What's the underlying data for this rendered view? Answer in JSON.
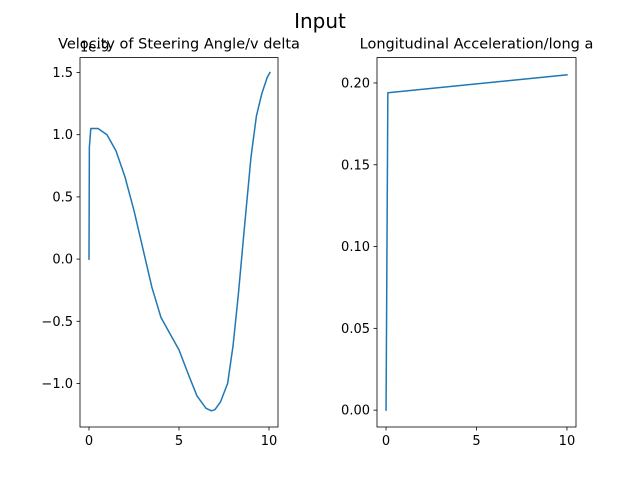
{
  "figure": {
    "suptitle": "Input"
  },
  "chart_data": [
    {
      "type": "line",
      "title": "Velocity of Steering Angle/v delta",
      "xlabel": "",
      "ylabel": "",
      "offset_label": "1e-9",
      "xlim": [
        -0.5,
        10.5
      ],
      "ylim": [
        -1.35,
        1.62
      ],
      "xticks": [
        0,
        5,
        10
      ],
      "xtick_labels": [
        "0",
        "5",
        "10"
      ],
      "yticks": [
        -1.0,
        -0.5,
        0.0,
        0.5,
        1.0,
        1.5
      ],
      "ytick_labels": [
        "−1.0",
        "−0.5",
        "0.0",
        "0.5",
        "1.0",
        "1.5"
      ],
      "grid": false,
      "color": "#1f77b4",
      "series": [
        {
          "x": [
            0,
            0.02,
            0.1,
            0.5,
            1.0,
            1.5,
            2.0,
            2.5,
            3.0,
            3.5,
            4.0,
            4.5,
            5.0,
            5.5,
            6.0,
            6.5,
            6.8,
            7.0,
            7.3,
            7.7,
            8.0,
            8.3,
            8.6,
            9.0,
            9.3,
            9.6,
            9.9,
            10.05
          ],
          "y": [
            0.0,
            0.9,
            1.05,
            1.05,
            1.0,
            0.87,
            0.66,
            0.39,
            0.08,
            -0.23,
            -0.47,
            -0.6,
            -0.73,
            -0.92,
            -1.1,
            -1.2,
            -1.22,
            -1.21,
            -1.15,
            -1.0,
            -0.7,
            -0.28,
            0.2,
            0.82,
            1.15,
            1.33,
            1.46,
            1.5
          ]
        }
      ]
    },
    {
      "type": "line",
      "title": "Longitudinal Acceleration/long a",
      "xlabel": "",
      "ylabel": "",
      "xlim": [
        -0.5,
        10.5
      ],
      "ylim": [
        -0.0103,
        0.2155
      ],
      "xticks": [
        0,
        5,
        10
      ],
      "xtick_labels": [
        "0",
        "5",
        "10"
      ],
      "yticks": [
        0.0,
        0.05,
        0.1,
        0.15,
        0.2
      ],
      "ytick_labels": [
        "0.00",
        "0.05",
        "0.10",
        "0.15",
        "0.20"
      ],
      "grid": false,
      "color": "#1f77b4",
      "series": [
        {
          "x": [
            0,
            0.1,
            10
          ],
          "y": [
            0.0,
            0.194,
            0.205
          ]
        }
      ]
    }
  ]
}
